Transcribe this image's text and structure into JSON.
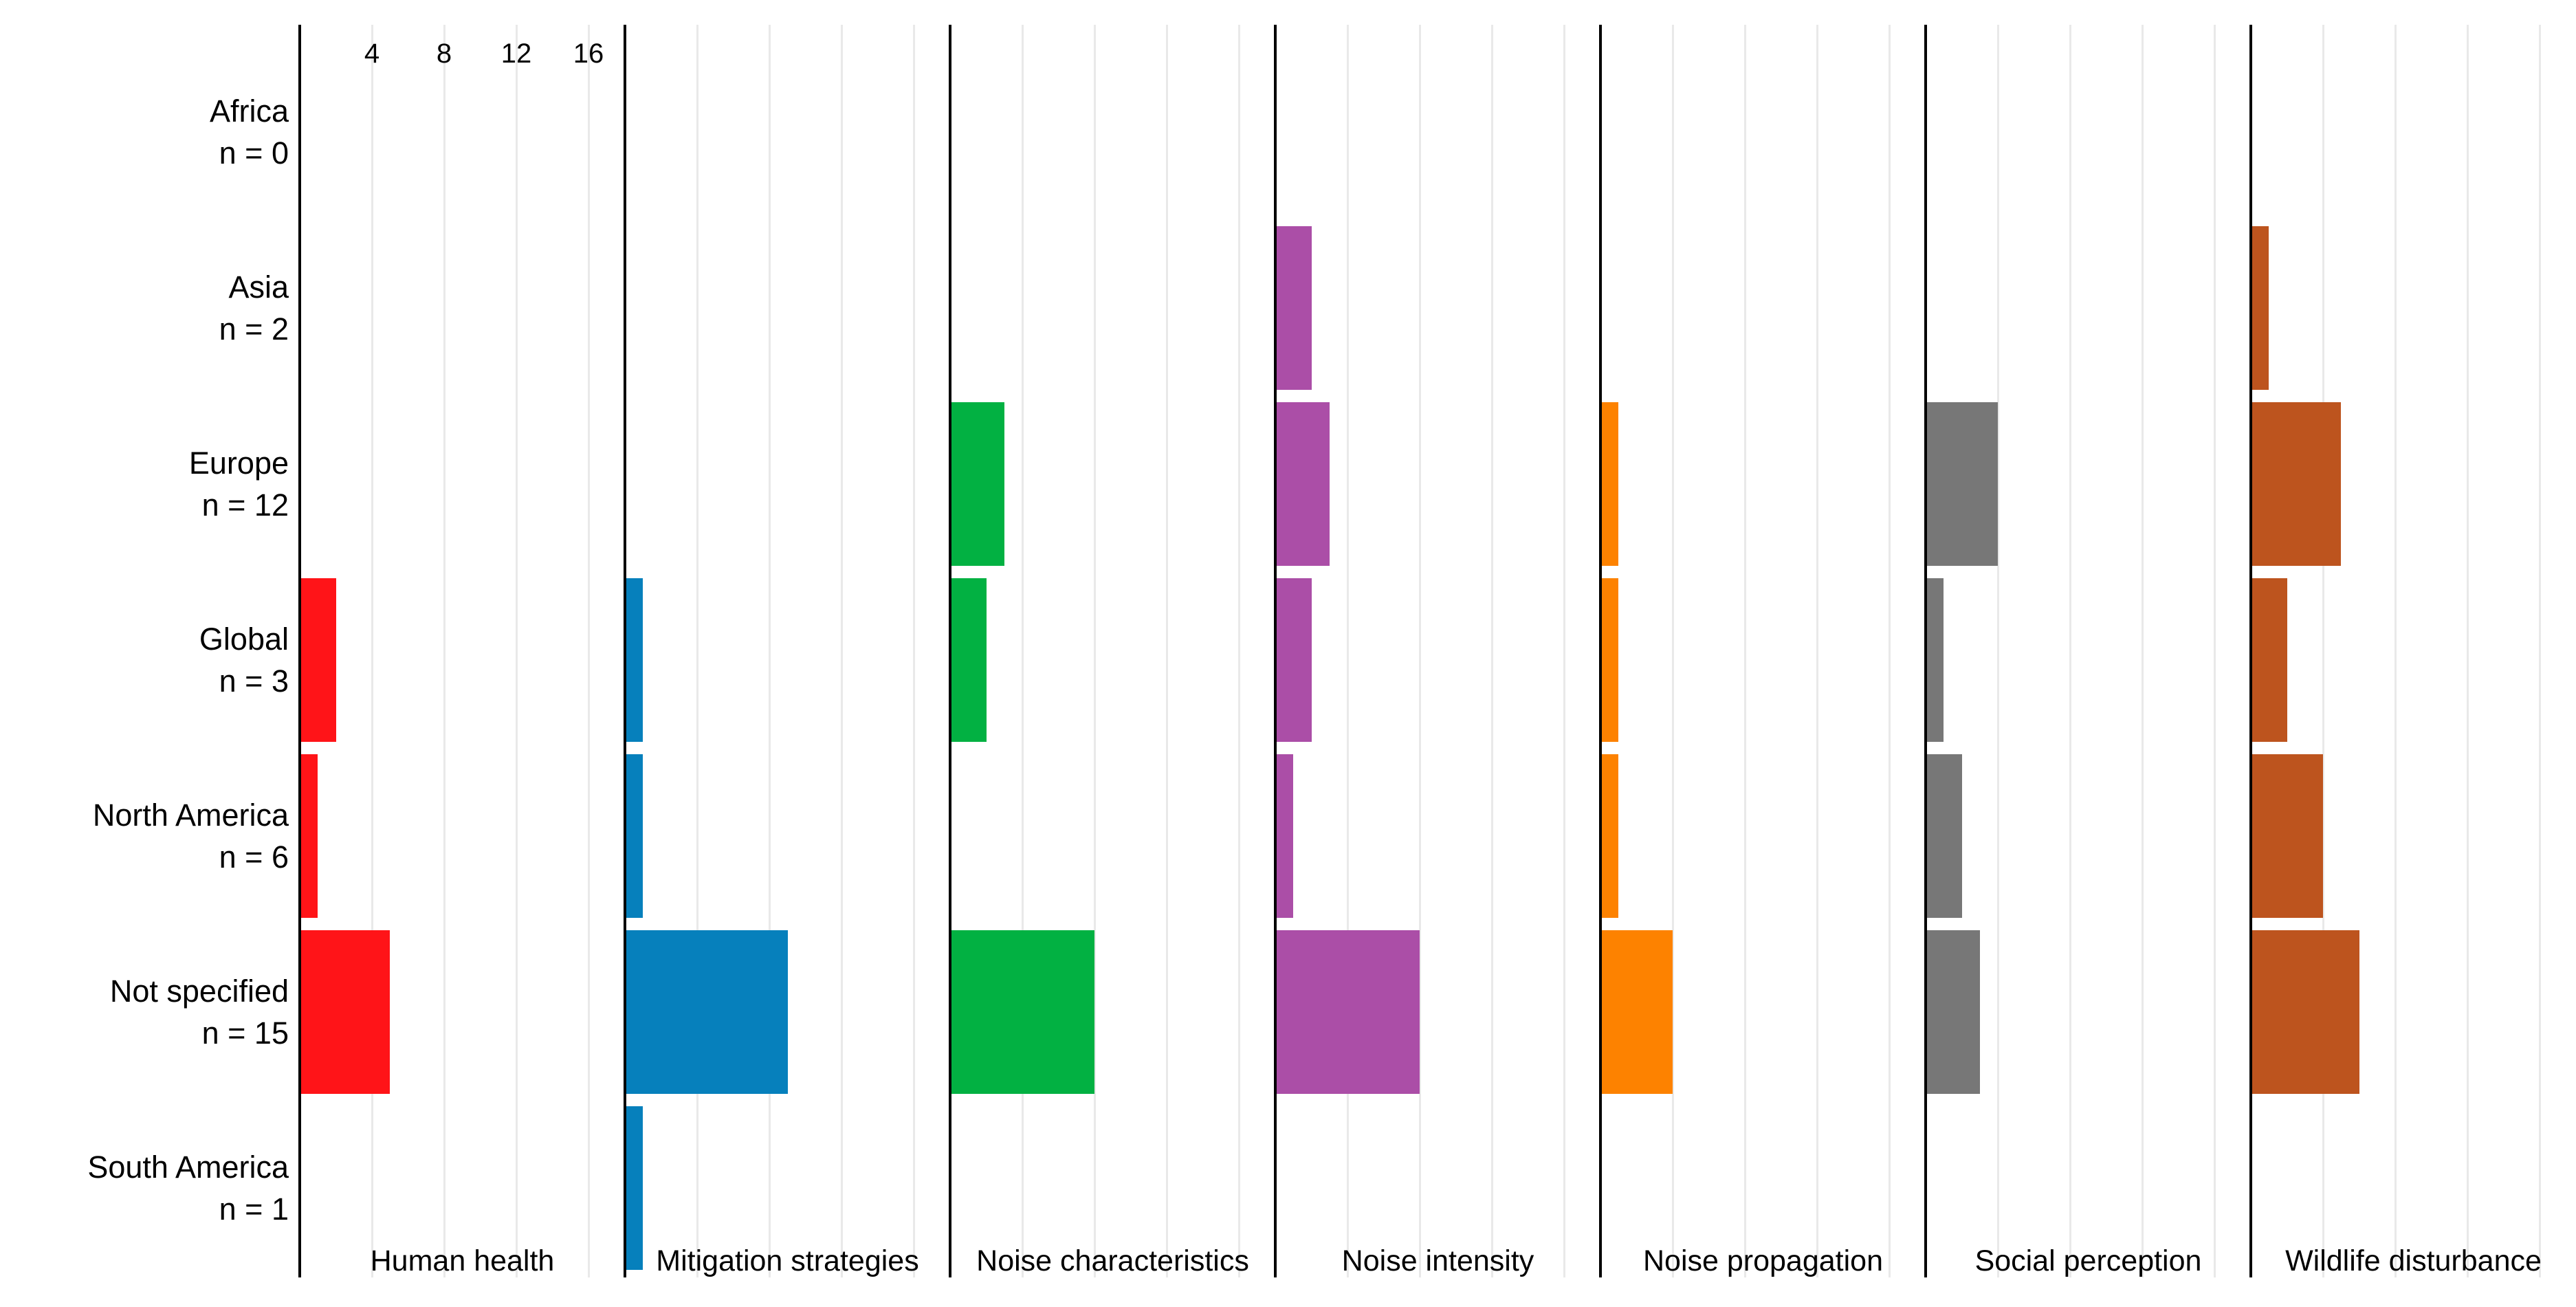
{
  "chart_data": {
    "type": "bar",
    "orientation": "horizontal",
    "layout_hint": "7 facet columns sharing a common x scale; y axis = regions; x tick labels shown at top of first facet only; light vertical gridlines at each tick; black vertical axis line at left edge of every facet; grid on; no legend; no title",
    "x_axis": {
      "tick_values": [
        4,
        8,
        12,
        16
      ],
      "tick_labels": [
        "4",
        "8",
        "12",
        "16"
      ],
      "range": [
        0,
        18
      ]
    },
    "rows": [
      {
        "region": "Africa",
        "n_label": "n = 0"
      },
      {
        "region": "Asia",
        "n_label": "n = 2"
      },
      {
        "region": "Europe",
        "n_label": "n = 12"
      },
      {
        "region": "Global",
        "n_label": "n = 3"
      },
      {
        "region": "North America",
        "n_label": "n = 6"
      },
      {
        "region": "Not specified",
        "n_label": "n = 15"
      },
      {
        "region": "South America",
        "n_label": "n = 1"
      }
    ],
    "facets": [
      {
        "label": "Human health",
        "color": "#FF1418",
        "values": [
          0,
          0,
          0,
          2,
          1,
          5,
          0
        ]
      },
      {
        "label": "Mitigation strategies",
        "color": "#0680BC",
        "values": [
          0,
          0,
          0,
          1,
          1,
          9,
          1
        ]
      },
      {
        "label": "Noise characteristics",
        "color": "#02B142",
        "values": [
          0,
          0,
          3,
          2,
          0,
          8,
          0
        ]
      },
      {
        "label": "Noise intensity",
        "color": "#AB4EA7",
        "values": [
          0,
          2,
          3,
          2,
          1,
          8,
          0
        ]
      },
      {
        "label": "Noise propagation",
        "color": "#FD8200",
        "values": [
          0,
          0,
          1,
          1,
          1,
          4,
          0
        ]
      },
      {
        "label": "Social perception",
        "color": "#777777",
        "values": [
          0,
          0,
          4,
          1,
          2,
          3,
          0
        ]
      },
      {
        "label": "Wildlife disturbance",
        "color": "#BD541E",
        "values": [
          0,
          1,
          5,
          2,
          4,
          6,
          0
        ]
      }
    ],
    "grid_color": "#E9E9E9",
    "axis_color": "#000000",
    "background_color": "#FFFFFF"
  }
}
